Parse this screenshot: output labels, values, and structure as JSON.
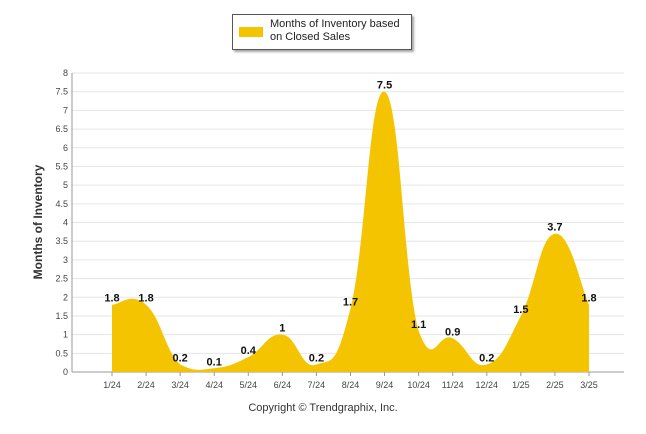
{
  "legend": {
    "label": "Months of Inventory based on Closed Sales",
    "color": "#F5C400"
  },
  "copyright": "Copyright © Trendgraphix, Inc.",
  "chart_data": {
    "type": "area",
    "categories": [
      "1/24",
      "2/24",
      "3/24",
      "4/24",
      "5/24",
      "6/24",
      "7/24",
      "8/24",
      "9/24",
      "10/24",
      "11/24",
      "12/24",
      "1/25",
      "2/25",
      "3/25"
    ],
    "series": [
      {
        "name": "Months of Inventory based on Closed Sales",
        "values": [
          1.8,
          1.8,
          0.2,
          0.1,
          0.4,
          1,
          0.2,
          1.7,
          7.5,
          1.1,
          0.9,
          0.2,
          1.5,
          3.7,
          1.8
        ],
        "labels": [
          "1.8",
          "1.8",
          "0.2",
          "0.1",
          "0.4",
          "1",
          "0.2",
          "1.7",
          "7.5",
          "1.1",
          "0.9",
          "0.2",
          "1.5",
          "3.7",
          "1.8"
        ]
      }
    ],
    "ylabel": "Months of Inventory",
    "xlabel": "",
    "ylim": [
      0,
      8
    ],
    "yticks": [
      "0",
      "0.5",
      "1",
      "1.5",
      "2",
      "2.5",
      "3",
      "3.5",
      "4",
      "4.5",
      "5",
      "5.5",
      "6",
      "6.5",
      "7",
      "7.5",
      "8"
    ],
    "grid": true,
    "legend_position": "top-center",
    "fill_color": "#F5C400"
  }
}
